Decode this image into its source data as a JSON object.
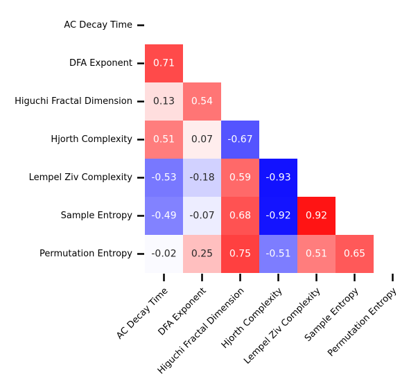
{
  "chart_data": {
    "type": "heatmap",
    "title": "",
    "xlabel": "",
    "ylabel": "",
    "variables": [
      "AC Decay Time",
      "DFA Exponent",
      "Higuchi Fractal Dimension",
      "Hjorth Complexity",
      "Lempel Ziv Complexity",
      "Sample Entropy",
      "Permutation Entropy"
    ],
    "mask": "upper-triangle-and-diagonal",
    "colormap": "bwr",
    "vmin": -1,
    "vmax": 1,
    "colorbar": false,
    "cells": [
      {
        "row": 1,
        "col": 0,
        "value": 0.71,
        "label": "0.71"
      },
      {
        "row": 2,
        "col": 0,
        "value": 0.13,
        "label": "0.13"
      },
      {
        "row": 2,
        "col": 1,
        "value": 0.54,
        "label": "0.54"
      },
      {
        "row": 3,
        "col": 0,
        "value": 0.51,
        "label": "0.51"
      },
      {
        "row": 3,
        "col": 1,
        "value": 0.07,
        "label": "0.07"
      },
      {
        "row": 3,
        "col": 2,
        "value": -0.67,
        "label": "-0.67"
      },
      {
        "row": 4,
        "col": 0,
        "value": -0.53,
        "label": "-0.53"
      },
      {
        "row": 4,
        "col": 1,
        "value": -0.18,
        "label": "-0.18"
      },
      {
        "row": 4,
        "col": 2,
        "value": 0.59,
        "label": "0.59"
      },
      {
        "row": 4,
        "col": 3,
        "value": -0.93,
        "label": "-0.93"
      },
      {
        "row": 5,
        "col": 0,
        "value": -0.49,
        "label": "-0.49"
      },
      {
        "row": 5,
        "col": 1,
        "value": -0.07,
        "label": "-0.07"
      },
      {
        "row": 5,
        "col": 2,
        "value": 0.68,
        "label": "0.68"
      },
      {
        "row": 5,
        "col": 3,
        "value": -0.92,
        "label": "-0.92"
      },
      {
        "row": 5,
        "col": 4,
        "value": 0.92,
        "label": "0.92"
      },
      {
        "row": 6,
        "col": 0,
        "value": -0.02,
        "label": "-0.02"
      },
      {
        "row": 6,
        "col": 1,
        "value": 0.25,
        "label": "0.25"
      },
      {
        "row": 6,
        "col": 2,
        "value": 0.75,
        "label": "0.75"
      },
      {
        "row": 6,
        "col": 3,
        "value": -0.51,
        "label": "-0.51"
      },
      {
        "row": 6,
        "col": 4,
        "value": 0.51,
        "label": "0.51"
      },
      {
        "row": 6,
        "col": 5,
        "value": 0.65,
        "label": "0.65"
      }
    ]
  }
}
